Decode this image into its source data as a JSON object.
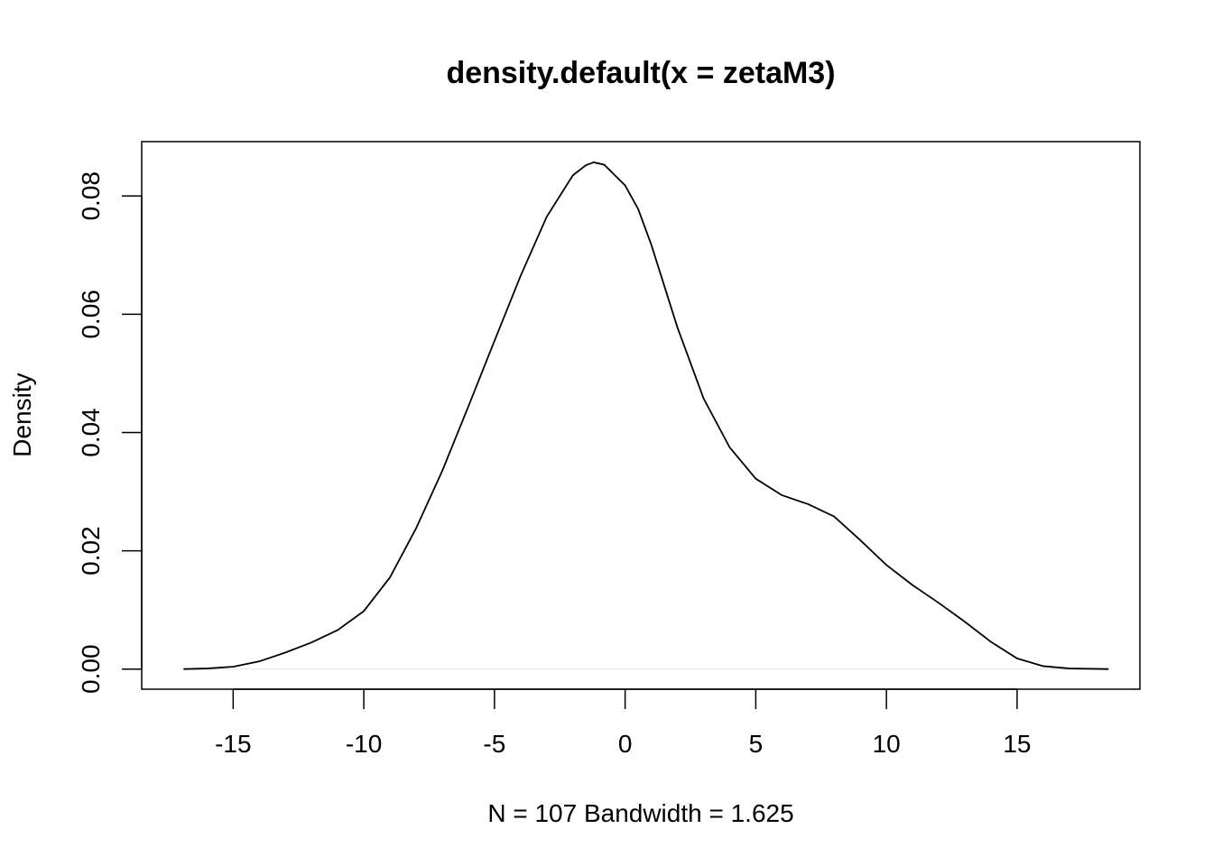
{
  "chart_data": {
    "type": "line",
    "title": "density.default(x = zetaM3)",
    "xlabel": "N = 107   Bandwidth = 1.625",
    "ylabel": "Density",
    "xlim": [
      -18.5,
      19.7
    ],
    "ylim": [
      -0.0034,
      0.0892
    ],
    "x_ticks": [
      -15,
      -10,
      -5,
      0,
      5,
      10,
      15
    ],
    "y_ticks": [
      0.0,
      0.02,
      0.04,
      0.06,
      0.08
    ],
    "x_tick_labels": [
      "-15",
      "-10",
      "-5",
      "0",
      "5",
      "10",
      "15"
    ],
    "y_tick_labels": [
      "0.00",
      "0.02",
      "0.04",
      "0.06",
      "0.08"
    ],
    "grid": false,
    "legend": "none",
    "line_color": "#000000",
    "baseline": 0,
    "baseline_color": "#e6e6e6",
    "series": [
      {
        "x": [
          -16.9,
          -16.0,
          -15.0,
          -14.0,
          -13.0,
          -12.0,
          -11.0,
          -10.0,
          -9.0,
          -8.0,
          -7.0,
          -6.0,
          -5.0,
          -4.0,
          -3.0,
          -2.0,
          -1.5,
          -1.2,
          -0.8,
          0.0,
          0.5,
          1.0,
          2.0,
          3.0,
          4.0,
          5.0,
          6.0,
          7.0,
          8.0,
          9.0,
          10.0,
          11.0,
          12.0,
          13.0,
          14.0,
          15.0,
          16.0,
          17.0,
          18.5
        ],
        "y": [
          0.0,
          0.0001,
          0.0004,
          0.0013,
          0.0028,
          0.0045,
          0.0066,
          0.0098,
          0.0155,
          0.0238,
          0.0335,
          0.0444,
          0.0555,
          0.0665,
          0.0765,
          0.0835,
          0.0852,
          0.0857,
          0.0853,
          0.0818,
          0.0778,
          0.0718,
          0.0578,
          0.0458,
          0.0375,
          0.0322,
          0.0294,
          0.0279,
          0.0258,
          0.0218,
          0.0176,
          0.0142,
          0.0112,
          0.008,
          0.0046,
          0.0018,
          0.0005,
          0.0001,
          0.0
        ]
      }
    ]
  }
}
